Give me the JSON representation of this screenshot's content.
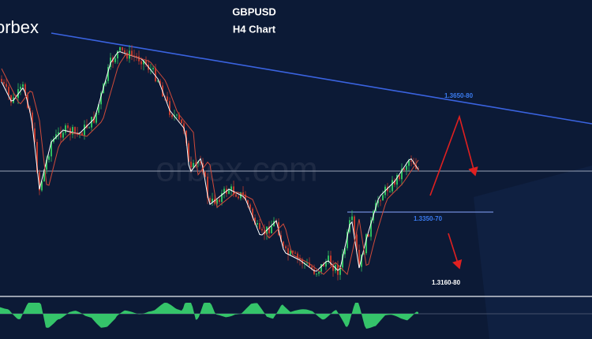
{
  "header": {
    "title": "GBPUSD",
    "subtitle": "H4 Chart"
  },
  "logo": "orbex",
  "watermark": "orbex.com",
  "levels": [
    "1.3650-80",
    "1.3350-70",
    "1.3160-80"
  ]
}
